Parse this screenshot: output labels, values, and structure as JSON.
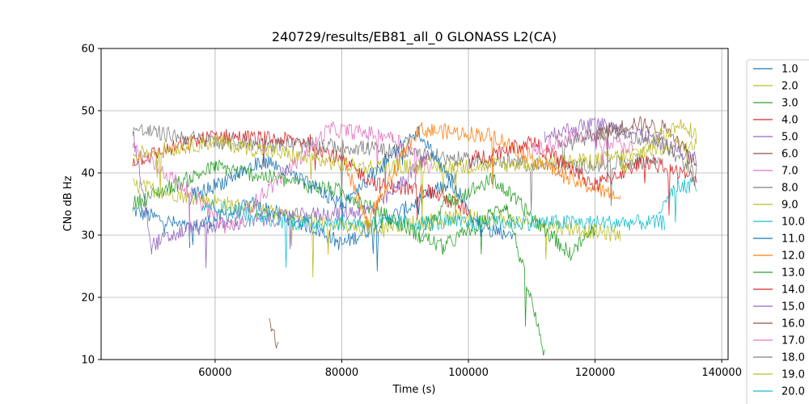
{
  "chart_data": {
    "type": "line",
    "title": "240729/results/EB81_all_0 GLONASS L2(CA)",
    "xlabel": "Time (s)",
    "ylabel": "CNo dB Hz",
    "xlim": [
      42000,
      141000
    ],
    "ylim": [
      10,
      60
    ],
    "xticks": [
      60000,
      80000,
      100000,
      120000,
      140000
    ],
    "yticks": [
      10,
      20,
      30,
      40,
      50,
      60
    ],
    "xtick_labels": [
      "60000",
      "80000",
      "100000",
      "120000",
      "140000"
    ],
    "ytick_labels": [
      "10",
      "20",
      "30",
      "40",
      "50",
      "60"
    ],
    "grid": true,
    "legend_position": "right, outside plot",
    "series": [
      {
        "name": "1.0",
        "color": "#1f77b4",
        "points": [
          [
            47000,
            34
          ],
          [
            56000,
            31
          ],
          [
            66000,
            35
          ],
          [
            76000,
            31
          ],
          [
            80000,
            28.5
          ],
          [
            88000,
            33
          ],
          [
            98000,
            39
          ]
        ]
      },
      {
        "name": "2.0",
        "color": "#bcbd22",
        "points": [
          [
            47000,
            38
          ],
          [
            62000,
            35
          ],
          [
            82000,
            31
          ],
          [
            100000,
            33
          ],
          [
            110000,
            32
          ],
          [
            124000,
            30
          ]
        ]
      },
      {
        "name": "3.0",
        "color": "#2ca02c",
        "points": [
          [
            47000,
            35
          ],
          [
            60000,
            41
          ],
          [
            80000,
            37
          ],
          [
            96000,
            28
          ],
          [
            106000,
            35
          ],
          [
            112000,
            11
          ]
        ]
      },
      {
        "name": "4.0",
        "color": "#d62728",
        "points": [
          [
            47000,
            42
          ],
          [
            60000,
            46
          ],
          [
            75000,
            45
          ],
          [
            86000,
            38
          ],
          [
            94000,
            37
          ],
          [
            100000,
            34
          ]
        ]
      },
      {
        "name": "5.0",
        "color": "#9467bd",
        "points": [
          [
            47000,
            47
          ],
          [
            50000,
            28.5
          ],
          [
            56000,
            31
          ],
          [
            72000,
            33
          ],
          [
            85000,
            34
          ],
          [
            94000,
            43
          ]
        ]
      },
      {
        "name": "6.0",
        "color": "#8c564b",
        "points": [
          [
            68500,
            17.5
          ],
          [
            69000,
            14.5
          ],
          [
            70000,
            12.5
          ]
        ]
      },
      {
        "name": "7.0",
        "color": "#e377c2",
        "points": [
          [
            47000,
            44
          ],
          [
            56000,
            37
          ],
          [
            62000,
            31
          ],
          [
            78000,
            47
          ],
          [
            88000,
            46
          ],
          [
            94000,
            41
          ]
        ]
      },
      {
        "name": "8.0",
        "color": "#7f7f7f",
        "points": [
          [
            47000,
            47
          ],
          [
            60000,
            45
          ],
          [
            84000,
            44
          ],
          [
            100000,
            42
          ],
          [
            116000,
            41
          ],
          [
            130000,
            42
          ]
        ]
      },
      {
        "name": "9.0",
        "color": "#bcbd22",
        "points": [
          [
            47000,
            43
          ],
          [
            60000,
            45
          ],
          [
            82000,
            41
          ],
          [
            100000,
            41
          ],
          [
            120000,
            42
          ],
          [
            136000,
            45
          ]
        ]
      },
      {
        "name": "10.0",
        "color": "#17becf",
        "points": [
          [
            58000,
            35
          ],
          [
            72000,
            32
          ],
          [
            90000,
            32
          ],
          [
            110000,
            32
          ],
          [
            124000,
            32
          ],
          [
            131000,
            32
          ]
        ]
      },
      {
        "name": "11.0",
        "color": "#1f77b4",
        "points": [
          [
            56000,
            36
          ],
          [
            68000,
            42
          ],
          [
            80000,
            35
          ],
          [
            92000,
            47
          ],
          [
            102000,
            31
          ],
          [
            107000,
            30
          ]
        ]
      },
      {
        "name": "12.0",
        "color": "#ff7f0e",
        "points": [
          [
            80000,
            43
          ],
          [
            84000,
            32
          ],
          [
            92000,
            47
          ],
          [
            104000,
            46
          ],
          [
            116000,
            39
          ],
          [
            124000,
            36
          ]
        ]
      },
      {
        "name": "13.0",
        "color": "#2ca02c",
        "points": [
          [
            92000,
            29
          ],
          [
            96000,
            35
          ],
          [
            104000,
            39
          ],
          [
            112000,
            31
          ],
          [
            116000,
            27
          ],
          [
            120000,
            31
          ]
        ]
      },
      {
        "name": "14.0",
        "color": "#d62728",
        "points": [
          [
            100000,
            42
          ],
          [
            110000,
            45
          ],
          [
            120000,
            38
          ],
          [
            128000,
            42
          ],
          [
            136000,
            39
          ]
        ]
      },
      {
        "name": "15.0",
        "color": "#9467bd",
        "points": [
          [
            112000,
            46
          ],
          [
            120000,
            48
          ],
          [
            128000,
            46
          ],
          [
            136000,
            42
          ]
        ]
      },
      {
        "name": "16.0",
        "color": "#8c564b",
        "points": [
          [
            120000,
            46
          ],
          [
            126000,
            48
          ],
          [
            132000,
            47
          ],
          [
            136000,
            41
          ]
        ]
      },
      {
        "name": "17.0",
        "color": "#e377c2",
        "points": [
          [
            110000,
            44
          ],
          [
            118000,
            46
          ],
          [
            126000,
            44
          ]
        ]
      },
      {
        "name": "18.0",
        "color": "#7f7f7f",
        "points": [
          [
            114000,
            44
          ],
          [
            122000,
            47
          ],
          [
            130000,
            45
          ],
          [
            136000,
            40
          ]
        ]
      },
      {
        "name": "19.0",
        "color": "#bcbd22",
        "points": [
          [
            124000,
            40
          ],
          [
            130000,
            46
          ],
          [
            134000,
            48
          ],
          [
            136000,
            46
          ]
        ]
      },
      {
        "name": "20.0",
        "color": "#17becf",
        "points": [
          [
            130000,
            33
          ],
          [
            133000,
            38
          ],
          [
            136000,
            38
          ]
        ]
      }
    ]
  }
}
